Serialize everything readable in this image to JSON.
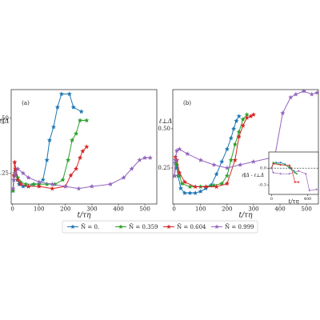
{
  "chart_data": [
    {
      "type": "line",
      "panel_label": "(a)",
      "x_label": "t/τη",
      "y_label": "ℓ∥Δ",
      "xlim": [
        -5,
        545
      ],
      "ylim": [
        0.11,
        0.63
      ],
      "xticks": [
        0,
        100,
        200,
        300,
        400,
        500
      ],
      "yticks": [
        0.25,
        {
          "value": 0.5,
          "label": "0.50"
        }
      ],
      "legend": "below",
      "series": [
        {
          "name": "Ñ = 0.",
          "color": "#1f77b4",
          "x": [
            2,
            5,
            8,
            12,
            18,
            25,
            40,
            60,
            80,
            100,
            115,
            130,
            140,
            155,
            170,
            185,
            215,
            230,
            260
          ],
          "values": [
            0.17,
            0.22,
            0.24,
            0.26,
            0.22,
            0.2,
            0.19,
            0.19,
            0.2,
            0.2,
            0.22,
            0.31,
            0.4,
            0.46,
            0.55,
            0.61,
            0.61,
            0.55,
            0.53
          ]
        },
        {
          "name": "Ñ = 0.359",
          "color": "#2ca02c",
          "x": [
            2,
            5,
            8,
            12,
            20,
            30,
            50,
            80,
            100,
            130,
            160,
            190,
            210,
            225,
            240,
            255,
            280
          ],
          "values": [
            0.17,
            0.22,
            0.25,
            0.27,
            0.23,
            0.21,
            0.2,
            0.2,
            0.2,
            0.2,
            0.2,
            0.22,
            0.31,
            0.4,
            0.43,
            0.49,
            0.49
          ]
        },
        {
          "name": "Ñ = 0.604",
          "color": "#d62728",
          "x": [
            2,
            5,
            8,
            12,
            20,
            30,
            60,
            100,
            150,
            200,
            220,
            240,
            255,
            265,
            280
          ],
          "values": [
            0.18,
            0.24,
            0.3,
            0.27,
            0.22,
            0.2,
            0.19,
            0.19,
            0.18,
            0.19,
            0.24,
            0.27,
            0.32,
            0.35,
            0.37
          ]
        },
        {
          "name": "Ñ = 0.999",
          "color": "#9467bd",
          "x": [
            2,
            5,
            10,
            20,
            40,
            60,
            100,
            150,
            200,
            250,
            300,
            370,
            420,
            450,
            480,
            500,
            520
          ],
          "values": [
            0.18,
            0.22,
            0.25,
            0.27,
            0.25,
            0.23,
            0.21,
            0.2,
            0.19,
            0.18,
            0.19,
            0.2,
            0.23,
            0.27,
            0.31,
            0.32,
            0.32
          ]
        }
      ]
    },
    {
      "type": "line",
      "panel_label": "(b)",
      "x_label": "t/τη",
      "y_label": "ℓ⊥Δ",
      "xlim": [
        -5,
        545
      ],
      "ylim": [
        0.02,
        0.75
      ],
      "xticks": [
        0,
        100,
        200,
        300,
        400,
        500
      ],
      "yticks": [
        0.25,
        {
          "value": 0.5,
          "label": "0.50"
        }
      ],
      "series": [
        {
          "color": "#1f77b4",
          "x": [
            2,
            5,
            10,
            15,
            25,
            40,
            60,
            80,
            100,
            120,
            140,
            160,
            180,
            200,
            215,
            225,
            235,
            245
          ],
          "values": [
            0.2,
            0.28,
            0.25,
            0.2,
            0.12,
            0.09,
            0.09,
            0.09,
            0.1,
            0.12,
            0.14,
            0.21,
            0.29,
            0.37,
            0.44,
            0.5,
            0.55,
            0.58
          ]
        },
        {
          "color": "#2ca02c",
          "x": [
            2,
            5,
            10,
            20,
            30,
            60,
            100,
            150,
            180,
            200,
            215,
            230,
            245,
            260,
            275
          ],
          "values": [
            0.2,
            0.3,
            0.27,
            0.2,
            0.15,
            0.13,
            0.13,
            0.14,
            0.15,
            0.2,
            0.3,
            0.4,
            0.48,
            0.56,
            0.59
          ]
        },
        {
          "color": "#d62728",
          "x": [
            2,
            5,
            10,
            20,
            40,
            80,
            120,
            160,
            200,
            230,
            245,
            260,
            275,
            290,
            300
          ],
          "values": [
            0.2,
            0.32,
            0.3,
            0.22,
            0.16,
            0.13,
            0.13,
            0.13,
            0.15,
            0.3,
            0.45,
            0.52,
            0.57,
            0.58,
            0.59
          ]
        },
        {
          "color": "#9467bd",
          "x": [
            2,
            5,
            10,
            20,
            50,
            100,
            150,
            200,
            250,
            300,
            380,
            410,
            440,
            460,
            490,
            520,
            540
          ],
          "values": [
            0.2,
            0.3,
            0.36,
            0.37,
            0.34,
            0.3,
            0.27,
            0.25,
            0.27,
            0.29,
            0.32,
            0.6,
            0.7,
            0.72,
            0.74,
            0.72,
            0.73
          ]
        }
      ]
    },
    {
      "type": "line",
      "x_label": "t/τη",
      "y_label": "ℓ∥Δ - ℓ⊥Δ",
      "xlim": [
        -30,
        520
      ],
      "ylim": [
        -0.47,
        0.29
      ],
      "xticks": [
        0,
        400
      ],
      "yticks": [
        {
          "value": 0,
          "label": "0.0"
        },
        -0.3
      ],
      "zero_line": true,
      "series": [
        {
          "color": "#1f77b4",
          "x": [
            0,
            20,
            50,
            100,
            150,
            200,
            250
          ],
          "values": [
            0.0,
            0.08,
            0.1,
            0.1,
            0.07,
            0.0,
            -0.05
          ]
        },
        {
          "color": "#2ca02c",
          "x": [
            0,
            20,
            80,
            150,
            200,
            260,
            280
          ],
          "values": [
            0.0,
            0.1,
            0.07,
            0.06,
            0.02,
            -0.08,
            -0.1
          ]
        },
        {
          "color": "#d62728",
          "x": [
            0,
            20,
            100,
            200,
            220,
            260,
            300
          ],
          "values": [
            0.0,
            0.08,
            0.06,
            0.05,
            0.0,
            -0.25,
            -0.25
          ]
        },
        {
          "color": "#9467bd",
          "x": [
            0,
            20,
            100,
            200,
            300,
            380,
            420,
            500
          ],
          "values": [
            0,
            -0.08,
            -0.1,
            -0.1,
            -0.05,
            -0.1,
            -0.4,
            -0.38
          ]
        }
      ]
    }
  ]
}
